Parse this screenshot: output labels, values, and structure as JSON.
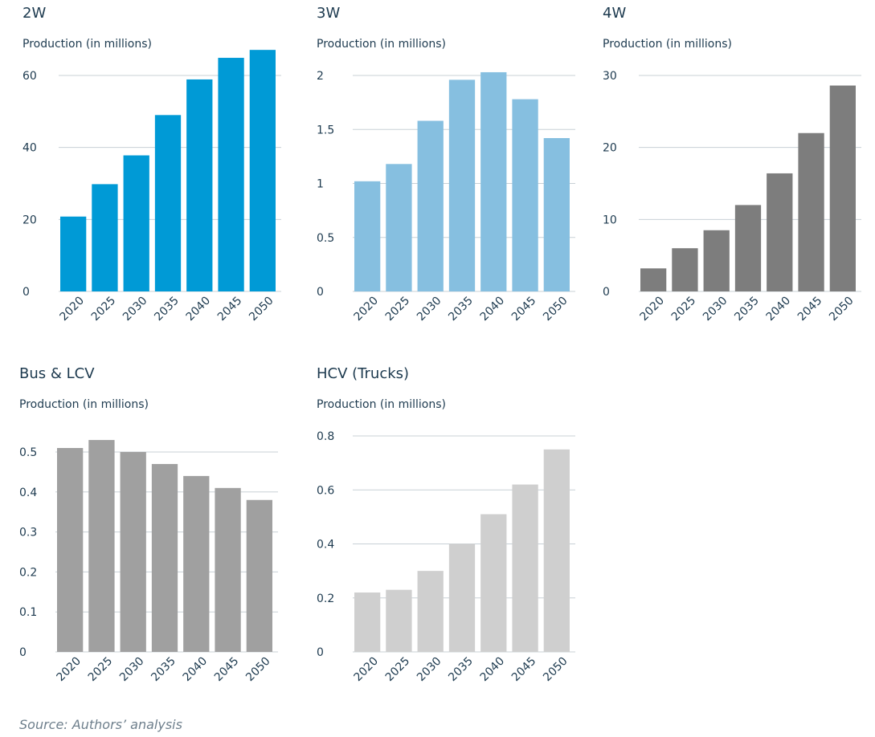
{
  "source": "Source: Authors’ analysis",
  "chart_data": [
    {
      "type": "bar",
      "title": "2W",
      "ylabel": "Production (in millions)",
      "categories": [
        "2020",
        "2025",
        "2030",
        "2035",
        "2040",
        "2045",
        "2050"
      ],
      "values": [
        20.8,
        29.8,
        37.8,
        49.0,
        58.9,
        64.9,
        67.1
      ],
      "yticks": [
        0,
        20,
        40,
        60
      ],
      "ytick_labels": [
        "0",
        "20",
        "40",
        "60"
      ],
      "ylim": [
        0,
        70
      ],
      "color": "#009ad6",
      "grid": true
    },
    {
      "type": "bar",
      "title": "3W",
      "ylabel": "Production (in millions)",
      "categories": [
        "2020",
        "2025",
        "2030",
        "2035",
        "2040",
        "2045",
        "2050"
      ],
      "values": [
        1.02,
        1.18,
        1.58,
        1.96,
        2.03,
        1.78,
        1.42
      ],
      "yticks": [
        0,
        0.5,
        1,
        1.5,
        2
      ],
      "ytick_labels": [
        "0",
        "0.5",
        "1",
        "1.5",
        "2"
      ],
      "ylim": [
        0,
        2.0
      ],
      "color": "#86bfe0",
      "grid": true
    },
    {
      "type": "bar",
      "title": "4W",
      "ylabel": "Production (in millions)",
      "categories": [
        "2020",
        "2025",
        "2030",
        "2035",
        "2040",
        "2045",
        "2050"
      ],
      "values": [
        3.2,
        6.0,
        8.5,
        12.0,
        16.4,
        22.0,
        28.6
      ],
      "yticks": [
        0,
        10,
        20,
        30
      ],
      "ytick_labels": [
        "0",
        "10",
        "20",
        "30"
      ],
      "ylim": [
        0,
        30
      ],
      "color": "#7d7d7d",
      "grid": true
    },
    {
      "type": "bar",
      "title": "Bus & LCV",
      "ylabel": "Production (in millions)",
      "categories": [
        "2020",
        "2025",
        "2030",
        "2035",
        "2040",
        "2045",
        "2050"
      ],
      "values": [
        0.51,
        0.53,
        0.5,
        0.47,
        0.44,
        0.41,
        0.38
      ],
      "yticks": [
        0,
        0.1,
        0.2,
        0.3,
        0.4,
        0.5
      ],
      "ytick_labels": [
        "0",
        "0.1",
        "0.2",
        "0.3",
        "0.4",
        "0.5"
      ],
      "ylim": [
        0,
        0.55
      ],
      "color": "#a0a0a0",
      "grid": true
    },
    {
      "type": "bar",
      "title": "HCV (Trucks)",
      "ylabel": "Production (in millions)",
      "categories": [
        "2020",
        "2025",
        "2030",
        "2035",
        "2040",
        "2045",
        "2050"
      ],
      "values": [
        0.22,
        0.23,
        0.3,
        0.4,
        0.51,
        0.62,
        0.75
      ],
      "yticks": [
        0,
        0.2,
        0.4,
        0.6,
        0.8
      ],
      "ytick_labels": [
        "0",
        "0.2",
        "0.4",
        "0.6",
        "0.8"
      ],
      "ylim": [
        0,
        0.8
      ],
      "color": "#cfcfcf",
      "grid": true
    }
  ]
}
